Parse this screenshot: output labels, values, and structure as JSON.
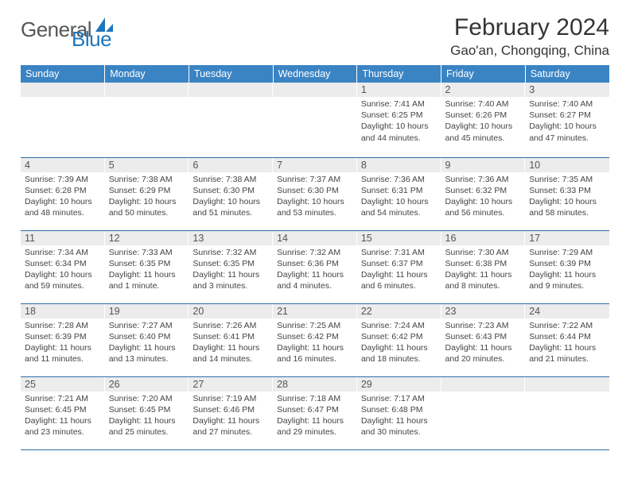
{
  "brand": {
    "part1": "General",
    "part2": "Blue"
  },
  "title": "February 2024",
  "location": "Gao'an, Chongqing, China",
  "colors": {
    "header_bg": "#3a84c4",
    "header_text": "#ffffff",
    "daynum_bg": "#ececec",
    "daynum_text": "#545454",
    "body_text": "#444444",
    "row_border": "#2f6da8",
    "logo_gray": "#555656",
    "logo_blue": "#1f76bc"
  },
  "day_headers": [
    "Sunday",
    "Monday",
    "Tuesday",
    "Wednesday",
    "Thursday",
    "Friday",
    "Saturday"
  ],
  "weeks": [
    [
      {
        "n": "",
        "sr": "",
        "ss": "",
        "dl": ""
      },
      {
        "n": "",
        "sr": "",
        "ss": "",
        "dl": ""
      },
      {
        "n": "",
        "sr": "",
        "ss": "",
        "dl": ""
      },
      {
        "n": "",
        "sr": "",
        "ss": "",
        "dl": ""
      },
      {
        "n": "1",
        "sr": "Sunrise: 7:41 AM",
        "ss": "Sunset: 6:25 PM",
        "dl": "Daylight: 10 hours and 44 minutes."
      },
      {
        "n": "2",
        "sr": "Sunrise: 7:40 AM",
        "ss": "Sunset: 6:26 PM",
        "dl": "Daylight: 10 hours and 45 minutes."
      },
      {
        "n": "3",
        "sr": "Sunrise: 7:40 AM",
        "ss": "Sunset: 6:27 PM",
        "dl": "Daylight: 10 hours and 47 minutes."
      }
    ],
    [
      {
        "n": "4",
        "sr": "Sunrise: 7:39 AM",
        "ss": "Sunset: 6:28 PM",
        "dl": "Daylight: 10 hours and 48 minutes."
      },
      {
        "n": "5",
        "sr": "Sunrise: 7:38 AM",
        "ss": "Sunset: 6:29 PM",
        "dl": "Daylight: 10 hours and 50 minutes."
      },
      {
        "n": "6",
        "sr": "Sunrise: 7:38 AM",
        "ss": "Sunset: 6:30 PM",
        "dl": "Daylight: 10 hours and 51 minutes."
      },
      {
        "n": "7",
        "sr": "Sunrise: 7:37 AM",
        "ss": "Sunset: 6:30 PM",
        "dl": "Daylight: 10 hours and 53 minutes."
      },
      {
        "n": "8",
        "sr": "Sunrise: 7:36 AM",
        "ss": "Sunset: 6:31 PM",
        "dl": "Daylight: 10 hours and 54 minutes."
      },
      {
        "n": "9",
        "sr": "Sunrise: 7:36 AM",
        "ss": "Sunset: 6:32 PM",
        "dl": "Daylight: 10 hours and 56 minutes."
      },
      {
        "n": "10",
        "sr": "Sunrise: 7:35 AM",
        "ss": "Sunset: 6:33 PM",
        "dl": "Daylight: 10 hours and 58 minutes."
      }
    ],
    [
      {
        "n": "11",
        "sr": "Sunrise: 7:34 AM",
        "ss": "Sunset: 6:34 PM",
        "dl": "Daylight: 10 hours and 59 minutes."
      },
      {
        "n": "12",
        "sr": "Sunrise: 7:33 AM",
        "ss": "Sunset: 6:35 PM",
        "dl": "Daylight: 11 hours and 1 minute."
      },
      {
        "n": "13",
        "sr": "Sunrise: 7:32 AM",
        "ss": "Sunset: 6:35 PM",
        "dl": "Daylight: 11 hours and 3 minutes."
      },
      {
        "n": "14",
        "sr": "Sunrise: 7:32 AM",
        "ss": "Sunset: 6:36 PM",
        "dl": "Daylight: 11 hours and 4 minutes."
      },
      {
        "n": "15",
        "sr": "Sunrise: 7:31 AM",
        "ss": "Sunset: 6:37 PM",
        "dl": "Daylight: 11 hours and 6 minutes."
      },
      {
        "n": "16",
        "sr": "Sunrise: 7:30 AM",
        "ss": "Sunset: 6:38 PM",
        "dl": "Daylight: 11 hours and 8 minutes."
      },
      {
        "n": "17",
        "sr": "Sunrise: 7:29 AM",
        "ss": "Sunset: 6:39 PM",
        "dl": "Daylight: 11 hours and 9 minutes."
      }
    ],
    [
      {
        "n": "18",
        "sr": "Sunrise: 7:28 AM",
        "ss": "Sunset: 6:39 PM",
        "dl": "Daylight: 11 hours and 11 minutes."
      },
      {
        "n": "19",
        "sr": "Sunrise: 7:27 AM",
        "ss": "Sunset: 6:40 PM",
        "dl": "Daylight: 11 hours and 13 minutes."
      },
      {
        "n": "20",
        "sr": "Sunrise: 7:26 AM",
        "ss": "Sunset: 6:41 PM",
        "dl": "Daylight: 11 hours and 14 minutes."
      },
      {
        "n": "21",
        "sr": "Sunrise: 7:25 AM",
        "ss": "Sunset: 6:42 PM",
        "dl": "Daylight: 11 hours and 16 minutes."
      },
      {
        "n": "22",
        "sr": "Sunrise: 7:24 AM",
        "ss": "Sunset: 6:42 PM",
        "dl": "Daylight: 11 hours and 18 minutes."
      },
      {
        "n": "23",
        "sr": "Sunrise: 7:23 AM",
        "ss": "Sunset: 6:43 PM",
        "dl": "Daylight: 11 hours and 20 minutes."
      },
      {
        "n": "24",
        "sr": "Sunrise: 7:22 AM",
        "ss": "Sunset: 6:44 PM",
        "dl": "Daylight: 11 hours and 21 minutes."
      }
    ],
    [
      {
        "n": "25",
        "sr": "Sunrise: 7:21 AM",
        "ss": "Sunset: 6:45 PM",
        "dl": "Daylight: 11 hours and 23 minutes."
      },
      {
        "n": "26",
        "sr": "Sunrise: 7:20 AM",
        "ss": "Sunset: 6:45 PM",
        "dl": "Daylight: 11 hours and 25 minutes."
      },
      {
        "n": "27",
        "sr": "Sunrise: 7:19 AM",
        "ss": "Sunset: 6:46 PM",
        "dl": "Daylight: 11 hours and 27 minutes."
      },
      {
        "n": "28",
        "sr": "Sunrise: 7:18 AM",
        "ss": "Sunset: 6:47 PM",
        "dl": "Daylight: 11 hours and 29 minutes."
      },
      {
        "n": "29",
        "sr": "Sunrise: 7:17 AM",
        "ss": "Sunset: 6:48 PM",
        "dl": "Daylight: 11 hours and 30 minutes."
      },
      {
        "n": "",
        "sr": "",
        "ss": "",
        "dl": ""
      },
      {
        "n": "",
        "sr": "",
        "ss": "",
        "dl": ""
      }
    ]
  ]
}
